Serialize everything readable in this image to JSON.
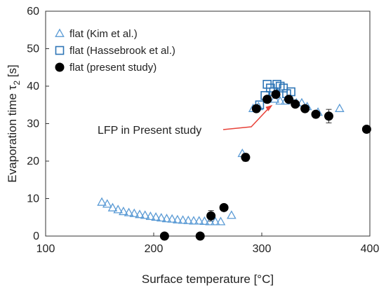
{
  "chart_data": {
    "type": "scatter",
    "xlabel": "Surface temperature [°C]",
    "ylabel": "Evaporation time τ",
    "ylabel_sub": "2",
    "ylabel_unit": " [s]",
    "xlim": [
      100,
      400
    ],
    "ylim": [
      0,
      60
    ],
    "xticks": [
      100,
      200,
      300,
      400
    ],
    "yticks": [
      0,
      10,
      20,
      30,
      40,
      50,
      60
    ],
    "grid": false,
    "legend_position": "top-left",
    "series": [
      {
        "name": "flat (Kim et al.)",
        "marker": "open-triangle",
        "color": "#5b9bd5",
        "points": [
          [
            152,
            9.0
          ],
          [
            157,
            8.5
          ],
          [
            162,
            7.5
          ],
          [
            167,
            7.0
          ],
          [
            172,
            6.5
          ],
          [
            177,
            6.2
          ],
          [
            182,
            6.0
          ],
          [
            187,
            5.7
          ],
          [
            192,
            5.5
          ],
          [
            197,
            5.2
          ],
          [
            202,
            5.0
          ],
          [
            207,
            4.8
          ],
          [
            212,
            4.6
          ],
          [
            217,
            4.5
          ],
          [
            222,
            4.3
          ],
          [
            227,
            4.2
          ],
          [
            232,
            4.1
          ],
          [
            237,
            4.0
          ],
          [
            242,
            4.0
          ],
          [
            247,
            3.9
          ],
          [
            252,
            3.8
          ],
          [
            257,
            3.8
          ],
          [
            262,
            3.8
          ],
          [
            272,
            5.5
          ],
          [
            282,
            22.0
          ],
          [
            292,
            34.0
          ],
          [
            297,
            34.5
          ],
          [
            312,
            36.5
          ],
          [
            317,
            36.0
          ],
          [
            322,
            36.0
          ],
          [
            327,
            36.5
          ],
          [
            332,
            35.5
          ],
          [
            337,
            35.5
          ],
          [
            342,
            34.5
          ],
          [
            352,
            33.0
          ],
          [
            372,
            34.0
          ]
        ]
      },
      {
        "name": "flat (Hassebrook et al.)",
        "marker": "open-square",
        "color": "#2e75b6",
        "points": [
          [
            298,
            35.0
          ],
          [
            303,
            37.5
          ],
          [
            305,
            40.5
          ],
          [
            308,
            39.5
          ],
          [
            311,
            38.5
          ],
          [
            314,
            40.5
          ],
          [
            317,
            40.0
          ],
          [
            320,
            39.5
          ],
          [
            323,
            38.0
          ],
          [
            327,
            38.5
          ]
        ]
      },
      {
        "name": "flat (present study)",
        "marker": "filled-circle",
        "color": "#000000",
        "points": [
          {
            "x": 210,
            "y": 0.0
          },
          {
            "x": 243,
            "y": 0.0
          },
          {
            "x": 253,
            "y": 5.4,
            "err": 1.4
          },
          {
            "x": 265,
            "y": 7.6
          },
          {
            "x": 285,
            "y": 21.0,
            "err": 1.0
          },
          {
            "x": 295,
            "y": 34.0
          },
          {
            "x": 305,
            "y": 36.5
          },
          {
            "x": 313,
            "y": 37.8
          },
          {
            "x": 325,
            "y": 36.5
          },
          {
            "x": 331,
            "y": 35.2
          },
          {
            "x": 340,
            "y": 34.0
          },
          {
            "x": 350,
            "y": 32.5
          },
          {
            "x": 362,
            "y": 32.0,
            "err": 1.8
          },
          {
            "x": 397,
            "y": 28.5
          }
        ]
      }
    ],
    "annotations": [
      {
        "text": "LFP in Present study",
        "arrow_to": [
          310,
          35.0
        ],
        "arrow_color": "#e8433a"
      }
    ]
  }
}
